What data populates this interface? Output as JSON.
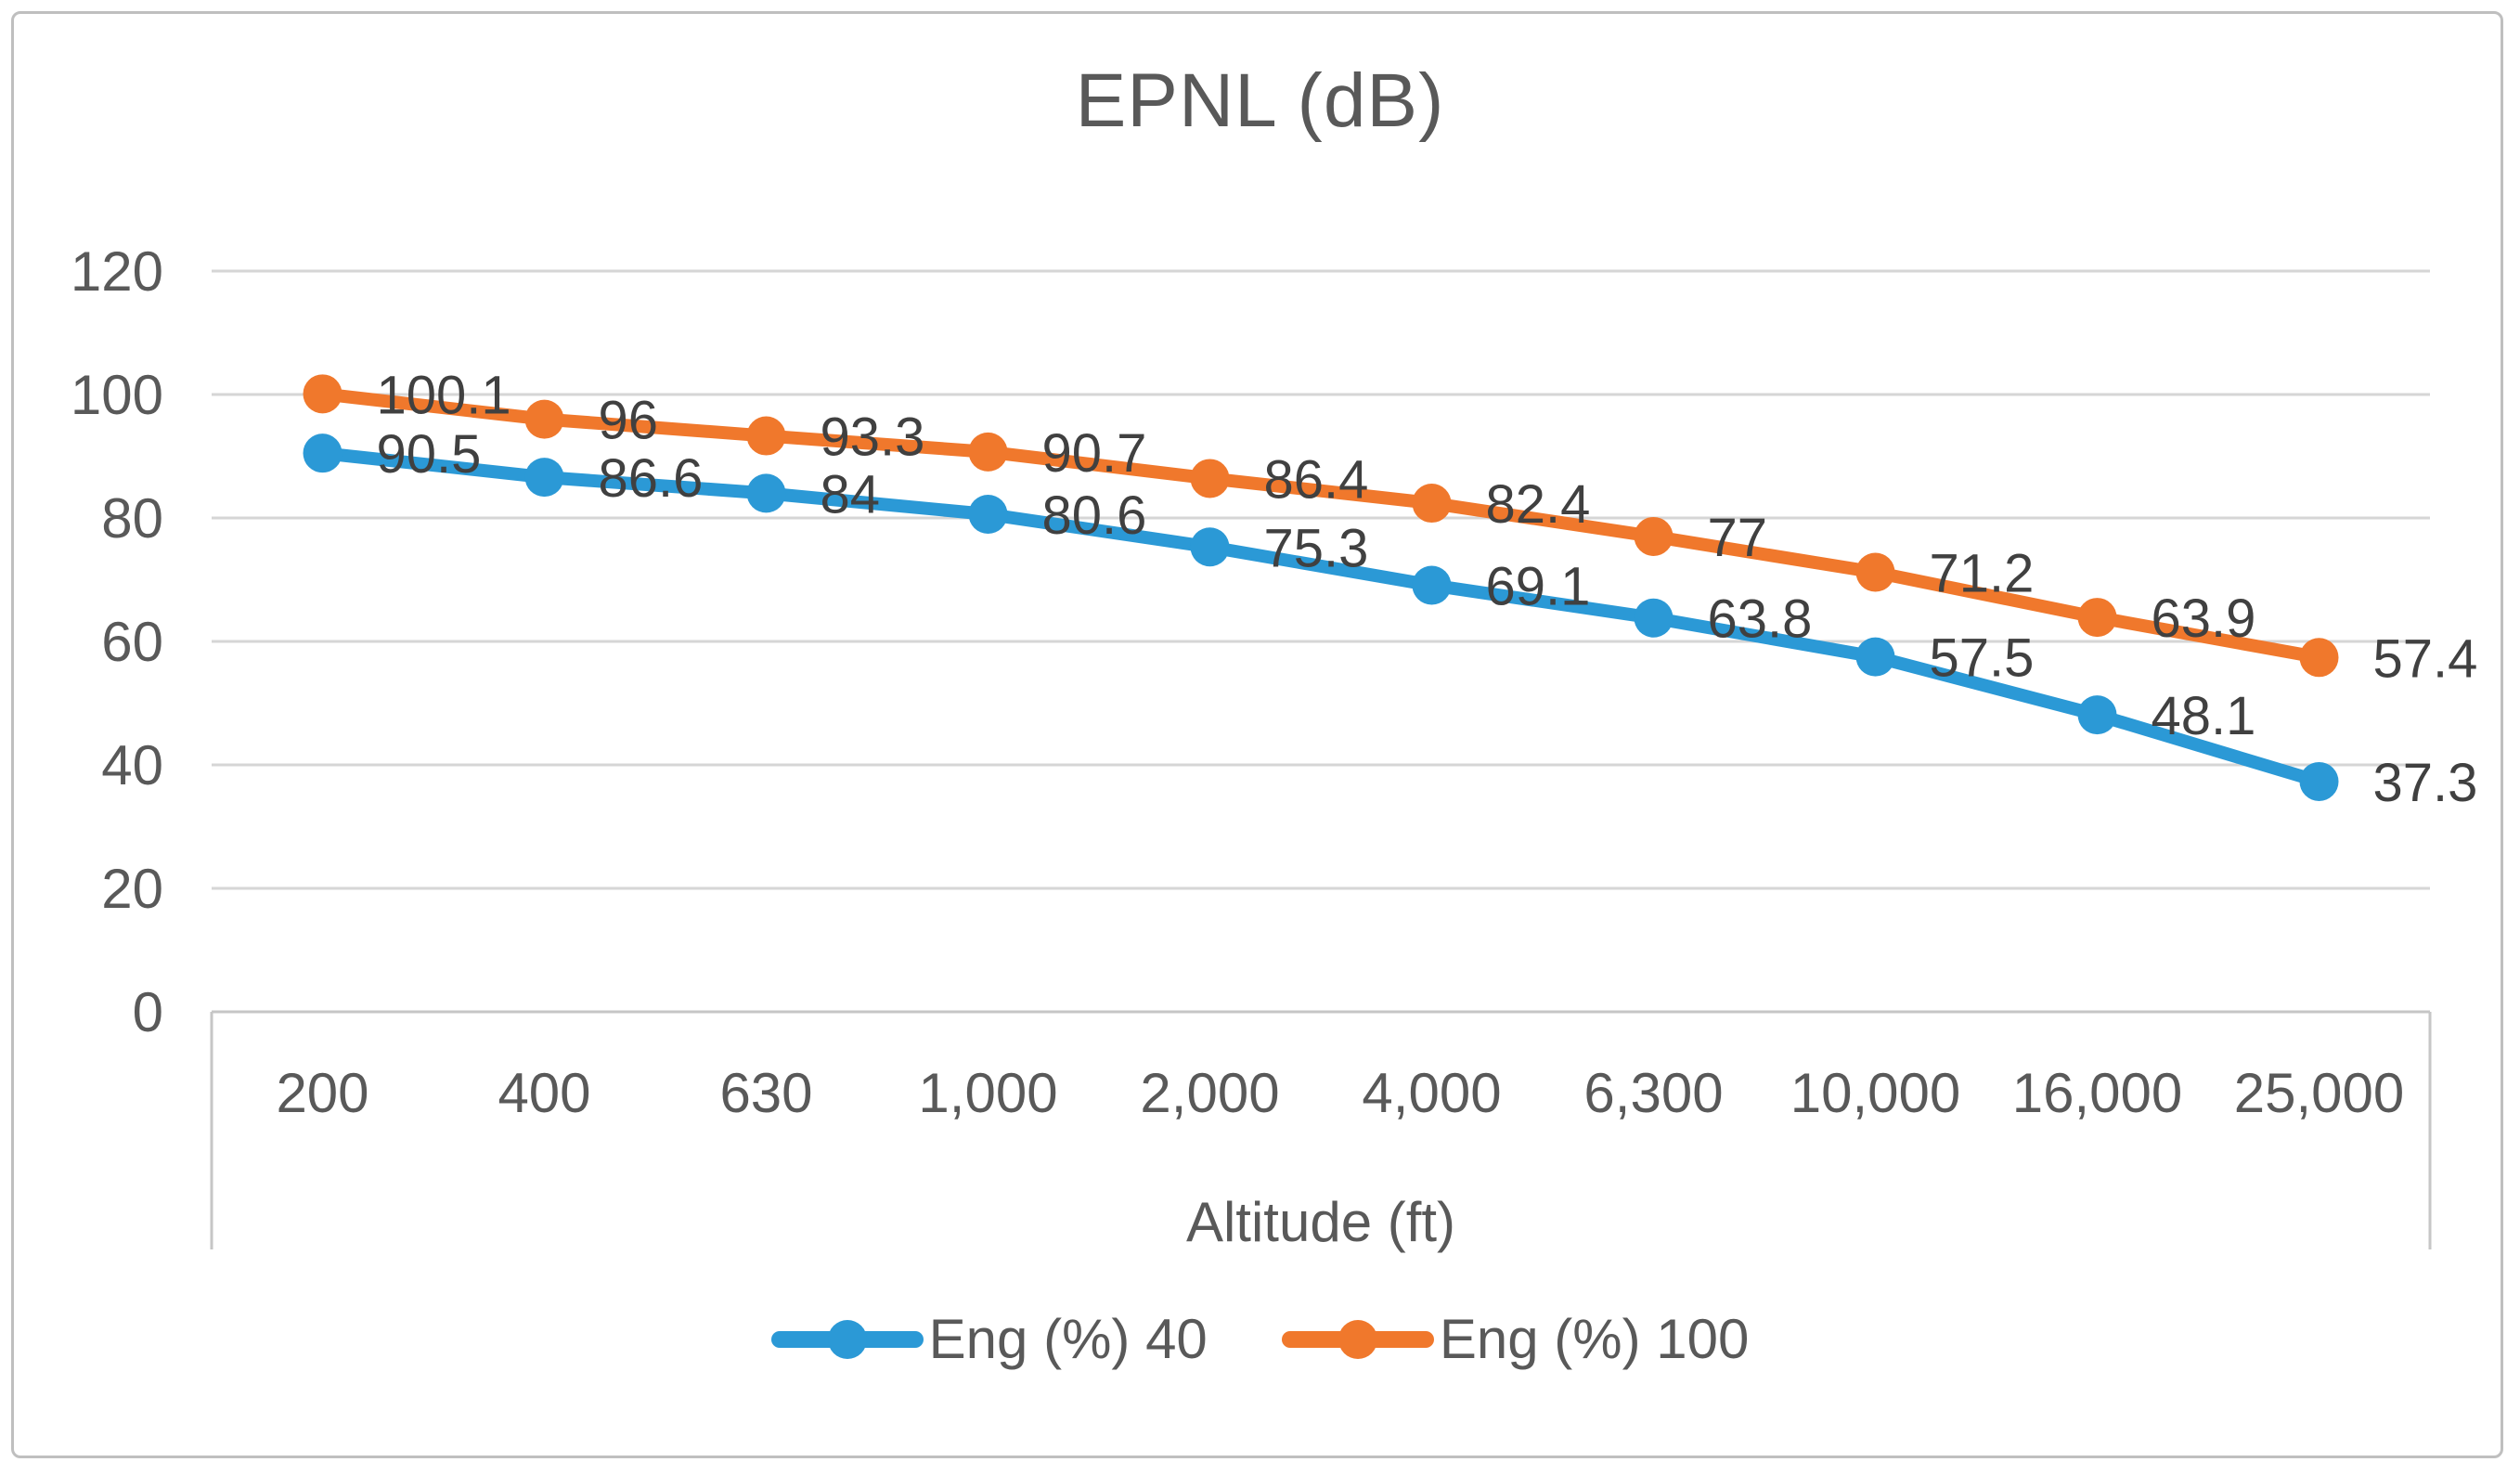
{
  "chart_data": {
    "type": "line",
    "title": "EPNL (dB)",
    "xlabel": "Altitude (ft)",
    "ylabel": "",
    "categories": [
      "200",
      "400",
      "630",
      "1,000",
      "2,000",
      "4,000",
      "6,300",
      "10,000",
      "16,000",
      "25,000"
    ],
    "series": [
      {
        "name": "Eng (%) 40",
        "color": "#2B99D6",
        "values": [
          90.5,
          86.6,
          84,
          80.6,
          75.3,
          69.1,
          63.8,
          57.5,
          48.1,
          37.3
        ]
      },
      {
        "name": "Eng (%) 100",
        "color": "#F0782C",
        "values": [
          100.1,
          96,
          93.3,
          90.7,
          86.4,
          82.4,
          77,
          71.2,
          63.9,
          57.4
        ]
      }
    ],
    "yticks": [
      0,
      20,
      40,
      60,
      80,
      100,
      120
    ],
    "ylim": [
      0,
      120
    ],
    "grid": true,
    "data_labels": true,
    "data_label_position": "right",
    "legend_position": "bottom"
  },
  "colors": {
    "gridline": "#D6D6D6",
    "axis_line": "#C6C6C6",
    "tick_text": "#595959",
    "data_label_text": "#404040",
    "title_text": "#595959",
    "frame_border": "#BFBFBF",
    "background": "#FFFFFF",
    "series_blue": "#2B99D6",
    "series_orange": "#F0782C"
  }
}
